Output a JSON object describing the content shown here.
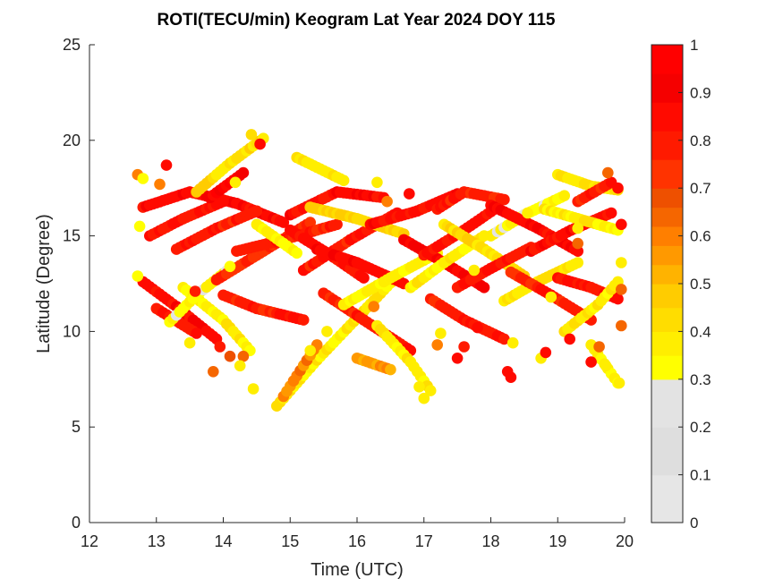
{
  "chart_data": {
    "type": "scatter",
    "title": "ROTI(TECU/min) Keogram Lat Year 2024  DOY 115",
    "xlabel": "Time (UTC)",
    "ylabel": "Latitude (Degree)",
    "xlim": [
      12,
      20
    ],
    "ylim": [
      0,
      25
    ],
    "xticks": [
      "12",
      "13",
      "14",
      "15",
      "16",
      "17",
      "18",
      "19",
      "20"
    ],
    "yticks": [
      "0",
      "5",
      "10",
      "15",
      "20",
      "25"
    ],
    "grid": false,
    "colorbar": {
      "range": [
        0,
        1
      ],
      "ticks": [
        "0",
        "0.1",
        "0.2",
        "0.3",
        "0.4",
        "0.5",
        "0.6",
        "0.7",
        "0.8",
        "0.9",
        "1"
      ],
      "bands": [
        {
          "from": 0.0,
          "to": 0.3,
          "colors": [
            "#e6e6e6",
            "#dedede",
            "#e3e3e3"
          ]
        },
        {
          "from": 0.3,
          "to": 0.5,
          "colors": [
            "#ffff00",
            "#ffee00",
            "#ffdd00",
            "#ffcc00"
          ]
        },
        {
          "from": 0.5,
          "to": 0.7,
          "colors": [
            "#ffb300",
            "#ff9900",
            "#ff7f00",
            "#f56600",
            "#ee5000"
          ]
        },
        {
          "from": 0.7,
          "to": 1.0,
          "colors": [
            "#ff3300",
            "#ff1a00",
            "#ff0a00",
            "#f50000",
            "#ff0000"
          ]
        }
      ]
    },
    "tracks": [
      {
        "x": [
          12.8,
          13.5,
          14.2,
          14.9
        ],
        "y": [
          16.5,
          17.3,
          16.7,
          15.7
        ],
        "roti": 0.85
      },
      {
        "x": [
          12.9,
          13.4,
          14.0
        ],
        "y": [
          15.0,
          15.9,
          16.8
        ],
        "roti": 0.82
      },
      {
        "x": [
          13.3,
          13.9,
          14.5
        ],
        "y": [
          14.3,
          15.4,
          16.3
        ],
        "roti": 0.8
      },
      {
        "x": [
          13.6,
          14.1,
          14.6
        ],
        "y": [
          17.3,
          18.8,
          20.1
        ],
        "roti": 0.42
      },
      {
        "x": [
          13.8,
          14.3
        ],
        "y": [
          17.0,
          18.3
        ],
        "roti": 0.9
      },
      {
        "x": [
          12.8,
          13.3,
          13.9
        ],
        "y": [
          12.6,
          11.3,
          9.6
        ],
        "roti": 0.85
      },
      {
        "x": [
          13.4,
          14.0,
          14.4
        ],
        "y": [
          12.3,
          10.6,
          9.0
        ],
        "roti": 0.36
      },
      {
        "x": [
          13.0,
          13.6
        ],
        "y": [
          11.2,
          9.9
        ],
        "roti": 0.8
      },
      {
        "x": [
          13.2,
          13.6,
          14.1
        ],
        "y": [
          10.5,
          11.9,
          13.3
        ],
        "roti": 0.33
      },
      {
        "x": [
          13.9,
          14.6,
          15.3
        ],
        "y": [
          12.7,
          14.2,
          15.7
        ],
        "roti": 0.75
      },
      {
        "x": [
          14.0,
          14.5,
          15.2
        ],
        "y": [
          11.9,
          11.2,
          10.6
        ],
        "roti": 0.8
      },
      {
        "x": [
          14.2,
          14.9,
          15.7
        ],
        "y": [
          14.2,
          14.8,
          15.6
        ],
        "roti": 0.78
      },
      {
        "x": [
          14.5,
          15.1
        ],
        "y": [
          15.6,
          14.1
        ],
        "roti": 0.35
      },
      {
        "x": [
          14.8,
          15.4,
          16.0,
          16.6
        ],
        "y": [
          6.1,
          8.5,
          10.7,
          12.9
        ],
        "roti": 0.38
      },
      {
        "x": [
          14.9,
          15.4
        ],
        "y": [
          6.6,
          9.3
        ],
        "roti": 0.6
      },
      {
        "x": [
          15.0,
          15.6,
          16.1
        ],
        "y": [
          15.3,
          14.0,
          12.8
        ],
        "roti": 0.83
      },
      {
        "x": [
          15.0,
          15.7,
          16.4
        ],
        "y": [
          16.1,
          17.3,
          17.0
        ],
        "roti": 0.85
      },
      {
        "x": [
          15.1,
          15.8
        ],
        "y": [
          19.1,
          17.9
        ],
        "roti": 0.4
      },
      {
        "x": [
          15.2,
          15.9,
          16.6
        ],
        "y": [
          13.2,
          14.8,
          16.2
        ],
        "roti": 0.8
      },
      {
        "x": [
          15.3,
          16.0,
          16.7
        ],
        "y": [
          16.5,
          15.9,
          15.1
        ],
        "roti": 0.45
      },
      {
        "x": [
          15.4,
          16.0,
          16.7
        ],
        "y": [
          14.3,
          13.6,
          12.5
        ],
        "roti": 0.86
      },
      {
        "x": [
          15.5,
          16.1,
          16.8
        ],
        "y": [
          12.0,
          10.6,
          9.0
        ],
        "roti": 0.8
      },
      {
        "x": [
          15.8,
          16.5,
          17.2
        ],
        "y": [
          11.4,
          12.8,
          14.1
        ],
        "roti": 0.35
      },
      {
        "x": [
          16.0,
          16.5
        ],
        "y": [
          8.6,
          8.0
        ],
        "roti": 0.55
      },
      {
        "x": [
          16.2,
          16.9,
          17.5
        ],
        "y": [
          15.6,
          16.3,
          17.2
        ],
        "roti": 0.84
      },
      {
        "x": [
          16.3,
          16.8,
          17.1
        ],
        "y": [
          10.3,
          8.4,
          6.9
        ],
        "roti": 0.38
      },
      {
        "x": [
          16.7,
          17.3,
          17.9
        ],
        "y": [
          14.8,
          13.6,
          12.3
        ],
        "roti": 0.87
      },
      {
        "x": [
          16.8,
          17.3,
          17.9
        ],
        "y": [
          12.3,
          13.6,
          15.0
        ],
        "roti": 0.36
      },
      {
        "x": [
          17.0,
          17.6,
          18.1
        ],
        "y": [
          14.0,
          15.3,
          16.5
        ],
        "roti": 0.83
      },
      {
        "x": [
          17.1,
          17.6,
          18.2
        ],
        "y": [
          11.7,
          10.6,
          9.6
        ],
        "roti": 0.8
      },
      {
        "x": [
          17.2,
          17.6,
          18.2
        ],
        "y": [
          16.4,
          17.3,
          16.9
        ],
        "roti": 0.78
      },
      {
        "x": [
          17.3,
          17.9,
          18.5
        ],
        "y": [
          15.6,
          14.3,
          12.9
        ],
        "roti": 0.42
      },
      {
        "x": [
          17.5,
          18.0,
          18.6
        ],
        "y": [
          12.3,
          13.3,
          14.4
        ],
        "roti": 0.82
      },
      {
        "x": [
          18.0,
          18.5,
          19.1
        ],
        "y": [
          15.0,
          16.1,
          17.1
        ],
        "roti": 0.34
      },
      {
        "x": [
          18.0,
          18.7,
          19.3
        ],
        "y": [
          16.6,
          15.4,
          14.2
        ],
        "roti": 0.86
      },
      {
        "x": [
          18.2,
          18.7,
          19.3
        ],
        "y": [
          11.6,
          12.6,
          13.6
        ],
        "roti": 0.4
      },
      {
        "x": [
          18.3,
          18.9,
          19.5
        ],
        "y": [
          13.1,
          11.9,
          10.6
        ],
        "roti": 0.8
      },
      {
        "x": [
          18.6,
          19.2,
          19.8
        ],
        "y": [
          14.2,
          15.3,
          16.2
        ],
        "roti": 0.85
      },
      {
        "x": [
          18.8,
          19.3,
          19.9
        ],
        "y": [
          16.4,
          15.9,
          15.3
        ],
        "roti": 0.37
      },
      {
        "x": [
          19.0,
          19.5,
          19.9
        ],
        "y": [
          18.2,
          17.6,
          17.4
        ],
        "roti": 0.4
      },
      {
        "x": [
          19.0,
          19.5,
          19.9
        ],
        "y": [
          12.8,
          12.3,
          11.7
        ],
        "roti": 0.82
      },
      {
        "x": [
          19.1,
          19.6,
          19.9
        ],
        "y": [
          10.0,
          11.4,
          12.6
        ],
        "roti": 0.38
      },
      {
        "x": [
          19.5,
          19.9
        ],
        "y": [
          9.3,
          7.3
        ],
        "roti": 0.35
      },
      {
        "x": [
          19.3,
          19.8
        ],
        "y": [
          16.8,
          17.8
        ],
        "roti": 0.8
      }
    ],
    "isolated_points": [
      {
        "x": 12.72,
        "y": 18.2,
        "roti": 0.6
      },
      {
        "x": 12.8,
        "y": 18.0,
        "roti": 0.35
      },
      {
        "x": 13.15,
        "y": 18.7,
        "roti": 0.85
      },
      {
        "x": 13.05,
        "y": 17.7,
        "roti": 0.6
      },
      {
        "x": 12.75,
        "y": 15.5,
        "roti": 0.35
      },
      {
        "x": 12.72,
        "y": 12.9,
        "roti": 0.35
      },
      {
        "x": 13.5,
        "y": 9.4,
        "roti": 0.38
      },
      {
        "x": 13.85,
        "y": 7.9,
        "roti": 0.62
      },
      {
        "x": 13.95,
        "y": 9.2,
        "roti": 0.8
      },
      {
        "x": 14.1,
        "y": 8.7,
        "roti": 0.7
      },
      {
        "x": 14.3,
        "y": 8.7,
        "roti": 0.62
      },
      {
        "x": 14.25,
        "y": 8.2,
        "roti": 0.36
      },
      {
        "x": 14.1,
        "y": 13.4,
        "roti": 0.35
      },
      {
        "x": 14.45,
        "y": 7.0,
        "roti": 0.38
      },
      {
        "x": 14.42,
        "y": 20.3,
        "roti": 0.4
      },
      {
        "x": 14.55,
        "y": 19.8,
        "roti": 0.85
      },
      {
        "x": 14.18,
        "y": 17.8,
        "roti": 0.36
      },
      {
        "x": 13.58,
        "y": 12.1,
        "roti": 0.8
      },
      {
        "x": 15.3,
        "y": 9.0,
        "roti": 0.38
      },
      {
        "x": 15.55,
        "y": 10.0,
        "roti": 0.38
      },
      {
        "x": 16.3,
        "y": 17.8,
        "roti": 0.38
      },
      {
        "x": 16.45,
        "y": 16.8,
        "roti": 0.6
      },
      {
        "x": 16.78,
        "y": 17.2,
        "roti": 0.85
      },
      {
        "x": 16.93,
        "y": 7.1,
        "roti": 0.38
      },
      {
        "x": 17.0,
        "y": 6.5,
        "roti": 0.38
      },
      {
        "x": 17.2,
        "y": 9.3,
        "roti": 0.6
      },
      {
        "x": 17.25,
        "y": 9.9,
        "roti": 0.38
      },
      {
        "x": 17.5,
        "y": 8.6,
        "roti": 0.85
      },
      {
        "x": 17.6,
        "y": 9.2,
        "roti": 0.8
      },
      {
        "x": 17.8,
        "y": 10.2,
        "roti": 0.85
      },
      {
        "x": 18.25,
        "y": 7.9,
        "roti": 0.85
      },
      {
        "x": 18.3,
        "y": 7.6,
        "roti": 0.85
      },
      {
        "x": 18.33,
        "y": 9.4,
        "roti": 0.36
      },
      {
        "x": 18.75,
        "y": 8.6,
        "roti": 0.38
      },
      {
        "x": 18.82,
        "y": 8.9,
        "roti": 0.85
      },
      {
        "x": 19.5,
        "y": 8.4,
        "roti": 0.85
      },
      {
        "x": 19.62,
        "y": 9.2,
        "roti": 0.62
      },
      {
        "x": 19.72,
        "y": 8.2,
        "roti": 0.38
      },
      {
        "x": 19.92,
        "y": 7.3,
        "roti": 0.38
      },
      {
        "x": 19.95,
        "y": 10.3,
        "roti": 0.62
      },
      {
        "x": 19.95,
        "y": 12.2,
        "roti": 0.62
      },
      {
        "x": 19.95,
        "y": 13.6,
        "roti": 0.38
      },
      {
        "x": 19.95,
        "y": 15.6,
        "roti": 0.85
      },
      {
        "x": 19.9,
        "y": 17.5,
        "roti": 0.85
      },
      {
        "x": 19.75,
        "y": 18.3,
        "roti": 0.62
      },
      {
        "x": 19.3,
        "y": 15.4,
        "roti": 0.38
      },
      {
        "x": 19.3,
        "y": 14.6,
        "roti": 0.62
      },
      {
        "x": 19.18,
        "y": 9.6,
        "roti": 0.85
      },
      {
        "x": 18.55,
        "y": 16.2,
        "roti": 0.38
      },
      {
        "x": 16.25,
        "y": 11.3,
        "roti": 0.6
      },
      {
        "x": 17.75,
        "y": 13.2,
        "roti": 0.38
      },
      {
        "x": 18.9,
        "y": 11.8,
        "roti": 0.38
      }
    ]
  }
}
